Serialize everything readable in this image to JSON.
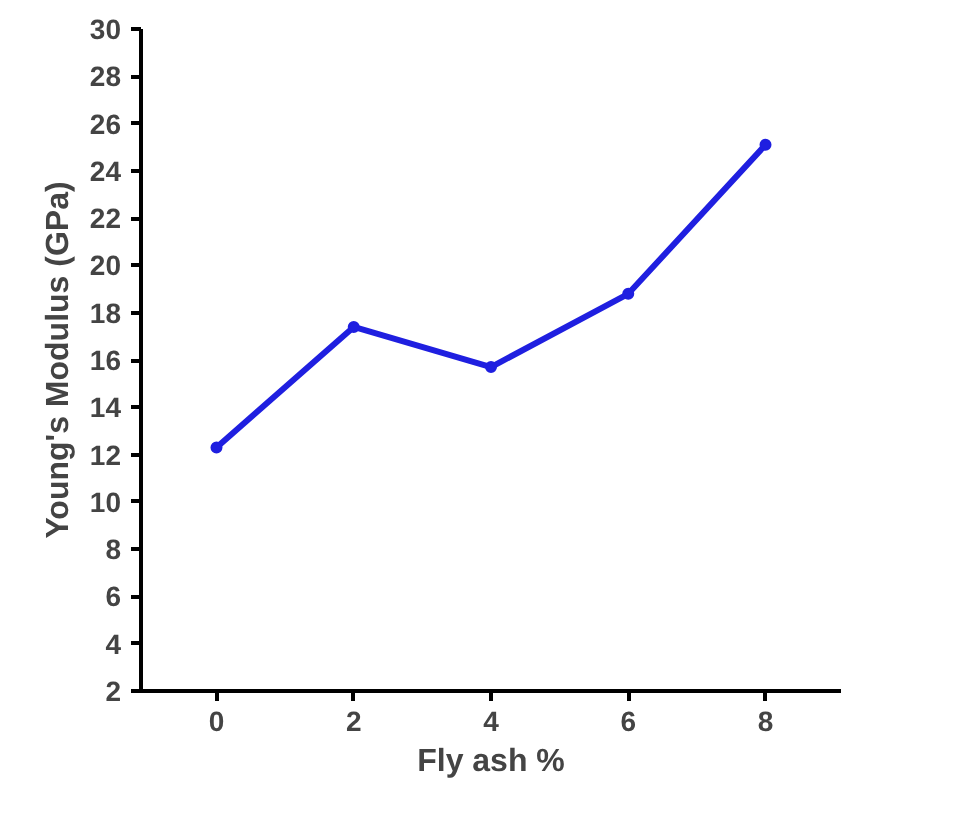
{
  "chart_data": {
    "type": "line",
    "xlabel": "Fly ash %",
    "ylabel": "Young's Modulus (GPa)",
    "x": [
      0,
      2,
      4,
      6,
      8
    ],
    "series": [
      {
        "color": "#1f1fe0",
        "values": [
          12.3,
          17.4,
          15.7,
          18.8,
          25.1
        ]
      }
    ],
    "xlim": [
      -1.1,
      9.1
    ],
    "xticks": [
      0,
      2,
      4,
      6,
      8
    ],
    "ylim": [
      2,
      30
    ],
    "yticks": [
      2,
      4,
      6,
      8,
      10,
      12,
      14,
      16,
      18,
      20,
      22,
      24,
      26,
      28,
      30
    ],
    "grid": false,
    "marker": "circle",
    "line_style": "solid"
  }
}
